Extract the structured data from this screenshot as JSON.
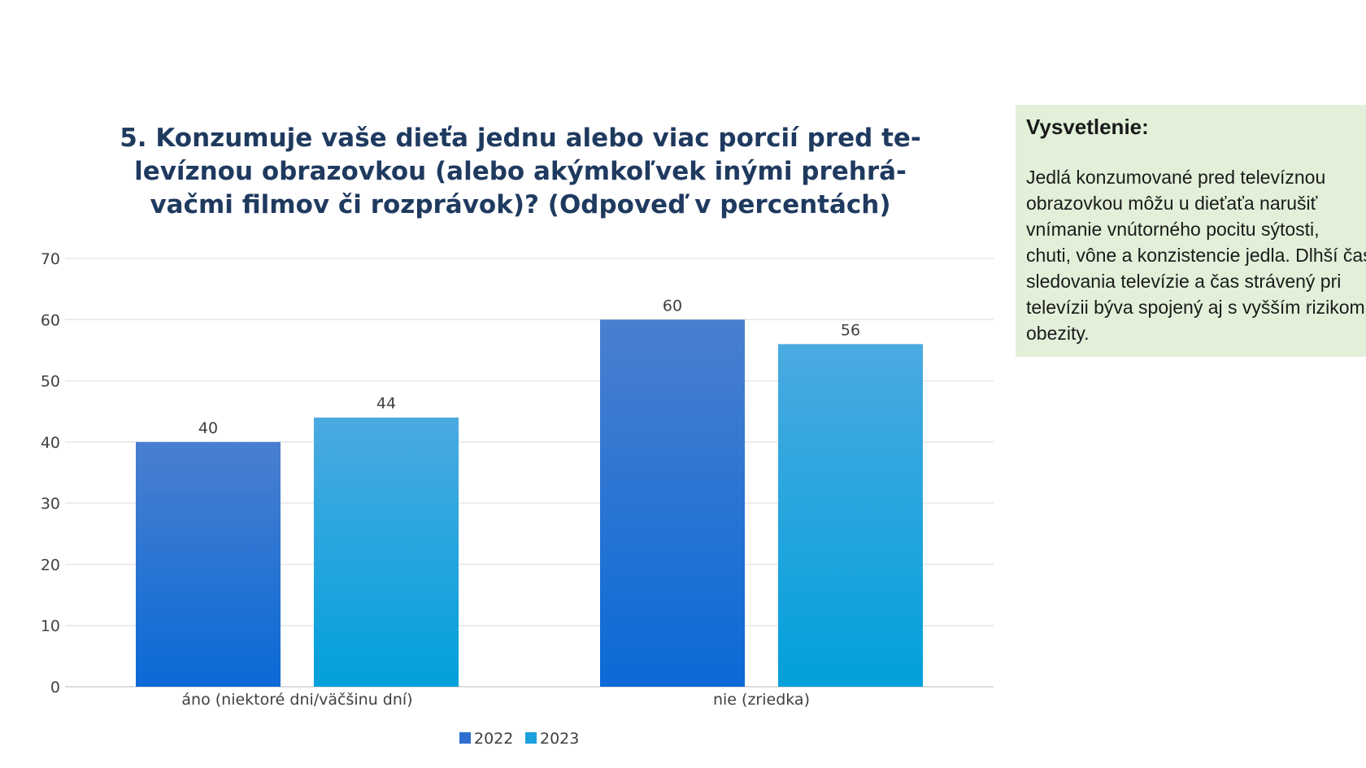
{
  "chart_data": {
    "type": "bar",
    "title_lines": [
      "5. Konzumuje vaše dieťa jednu alebo viac porcií pred te-",
      "levíznou obrazovkou (alebo akýmkoľvek inými prehrá-",
      "vačmi filmov či rozprávok)? (Odpoveď v percentách)"
    ],
    "categories": [
      "áno (niektoré dni/väčšinu dní)",
      "nie (zriedka)"
    ],
    "series": [
      {
        "name": "2022",
        "values": [
          40,
          60
        ],
        "color": "#2f6fd0"
      },
      {
        "name": "2023",
        "values": [
          44,
          56
        ],
        "color": "#1aa0dc"
      }
    ],
    "ylim": [
      0,
      70
    ],
    "yticks": [
      0,
      10,
      20,
      30,
      40,
      50,
      60,
      70
    ],
    "grid": true,
    "legend_position": "bottom"
  },
  "explanation": {
    "title": "Vysvetlenie:",
    "lines": [
      "Jedlá konzumované pred televíznou",
      "obrazovkou môžu u dieťaťa narušiť",
      "vnímanie vnútorného pocitu sýtosti,",
      "chuti, vône a konzistencie jedla. Dlhší čas",
      "sledovania televízie a čas strávený pri",
      "televízii býva spojený aj s vyšším rizikom",
      "obezity."
    ]
  }
}
